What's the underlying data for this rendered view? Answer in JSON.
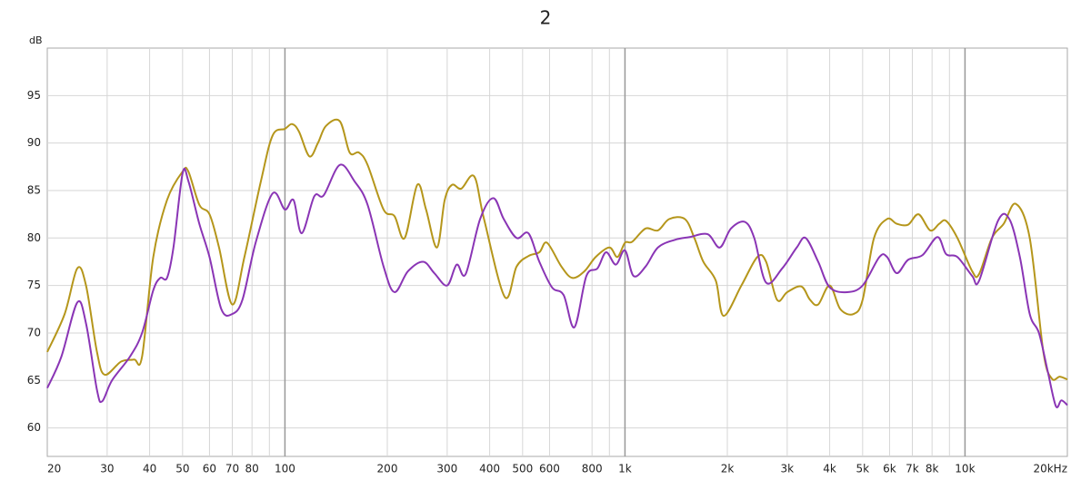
{
  "chart_data": {
    "type": "line",
    "title": "2",
    "y_label": "dB",
    "log_x": true,
    "grid": true,
    "xlim": [
      20,
      20000
    ],
    "ylim": [
      57,
      100
    ],
    "yticks": [
      60,
      65,
      70,
      75,
      80,
      85,
      90,
      95
    ],
    "xticks": [
      20,
      30,
      40,
      50,
      60,
      70,
      80,
      100,
      200,
      300,
      400,
      500,
      600,
      800,
      {
        "value": 1000,
        "label": "1k"
      },
      {
        "value": 2000,
        "label": "2k"
      },
      {
        "value": 3000,
        "label": "3k"
      },
      {
        "value": 4000,
        "label": "4k"
      },
      {
        "value": 5000,
        "label": "5k"
      },
      {
        "value": 6000,
        "label": "6k"
      },
      {
        "value": 7000,
        "label": "7k"
      },
      {
        "value": 8000,
        "label": "8k"
      },
      {
        "value": 10000,
        "label": "10k"
      },
      {
        "value": 20000,
        "label": "20kHz"
      }
    ],
    "xgrid_minor": [
      90,
      900,
      9000
    ],
    "series": [
      {
        "color": "#b5961b",
        "x": [
          20,
          22.5,
          24.5,
          26,
          28,
          29.5,
          33,
          36,
          38,
          41,
          45,
          50,
          52,
          56,
          60,
          64,
          70,
          76,
          85,
          92,
          100,
          105,
          110,
          118,
          125,
          132,
          145,
          155,
          165,
          175,
          195,
          210,
          225,
          245,
          260,
          280,
          295,
          310,
          330,
          360,
          385,
          443,
          480,
          520,
          560,
          590,
          650,
          700,
          760,
          820,
          900,
          950,
          1000,
          1050,
          1150,
          1250,
          1350,
          1500,
          1600,
          1700,
          1850,
          1950,
          2200,
          2450,
          2600,
          2800,
          3000,
          3300,
          3500,
          3700,
          4000,
          4300,
          4700,
          5000,
          5400,
          5900,
          6300,
          6800,
          7300,
          7900,
          8400,
          8800,
          9500,
          10500,
          11000,
          12000,
          13000,
          14100,
          15500,
          17000,
          18000,
          19000,
          20000
        ],
        "values": [
          68,
          72,
          76.8,
          75,
          68,
          65.6,
          67,
          67.2,
          67.5,
          78,
          84,
          87,
          87,
          83.5,
          82.5,
          79,
          73,
          78,
          86,
          90.8,
          91.5,
          92,
          91.2,
          88.6,
          90,
          91.8,
          92.3,
          89,
          89,
          87.7,
          83,
          82.3,
          80,
          85.6,
          83,
          79,
          84,
          85.6,
          85.2,
          86.5,
          82,
          73.8,
          77,
          78.1,
          78.5,
          79.5,
          77,
          75.8,
          76.5,
          78,
          79,
          78,
          79.5,
          79.6,
          81,
          80.8,
          82,
          82,
          80,
          77.5,
          75.5,
          71.8,
          75,
          78,
          77.5,
          73.5,
          74.3,
          74.9,
          73.5,
          73,
          75,
          72.5,
          72,
          73.5,
          80,
          82,
          81.5,
          81.4,
          82.5,
          80.8,
          81.5,
          81.8,
          80,
          76.5,
          76.2,
          80,
          81.5,
          83.6,
          80,
          68,
          65.2,
          65.4,
          65.1
        ]
      },
      {
        "color": "#8a35b5",
        "x": [
          20,
          22,
          24.5,
          26,
          28,
          29,
          31,
          35,
          38,
          41,
          43,
          45,
          47,
          50,
          52,
          56,
          60,
          65,
          70,
          75,
          82,
          92,
          100,
          106,
          112,
          122,
          130,
          145,
          160,
          175,
          195,
          210,
          230,
          255,
          275,
          300,
          320,
          340,
          375,
          410,
          440,
          480,
          520,
          560,
          610,
          660,
          710,
          770,
          830,
          880,
          940,
          1000,
          1060,
          1150,
          1250,
          1400,
          1550,
          1750,
          1900,
          2050,
          2250,
          2400,
          2600,
          2900,
          3200,
          3400,
          3700,
          4000,
          4500,
          5000,
          5600,
          5900,
          6300,
          6800,
          7500,
          8300,
          8800,
          9500,
          10500,
          11000,
          12500,
          13500,
          14500,
          15500,
          16500,
          17500,
          18500,
          19200,
          20000
        ],
        "values": [
          64.2,
          67.5,
          73.2,
          71,
          64,
          62.8,
          65,
          67.5,
          70,
          74.5,
          75.8,
          75.8,
          79,
          86.8,
          86,
          81.5,
          78,
          72.5,
          72,
          73.5,
          79.5,
          84.7,
          83,
          84,
          80.5,
          84.4,
          84.5,
          87.7,
          86,
          83.5,
          77,
          74.3,
          76.5,
          77.5,
          76.3,
          75,
          77.2,
          76.2,
          82,
          84.2,
          82,
          80,
          80.5,
          77.5,
          74.8,
          74,
          70.6,
          76,
          76.8,
          78.5,
          77.2,
          78.7,
          76,
          77,
          79,
          79.8,
          80.1,
          80.4,
          79,
          81,
          81.7,
          80,
          75.3,
          76.8,
          79,
          80,
          77.5,
          74.8,
          74.3,
          75,
          78,
          78,
          76.3,
          77.7,
          78.2,
          80.1,
          78.3,
          78,
          76,
          75.5,
          81.8,
          82,
          78,
          72,
          70,
          66,
          62.3,
          62.9,
          62.4
        ]
      }
    ]
  }
}
